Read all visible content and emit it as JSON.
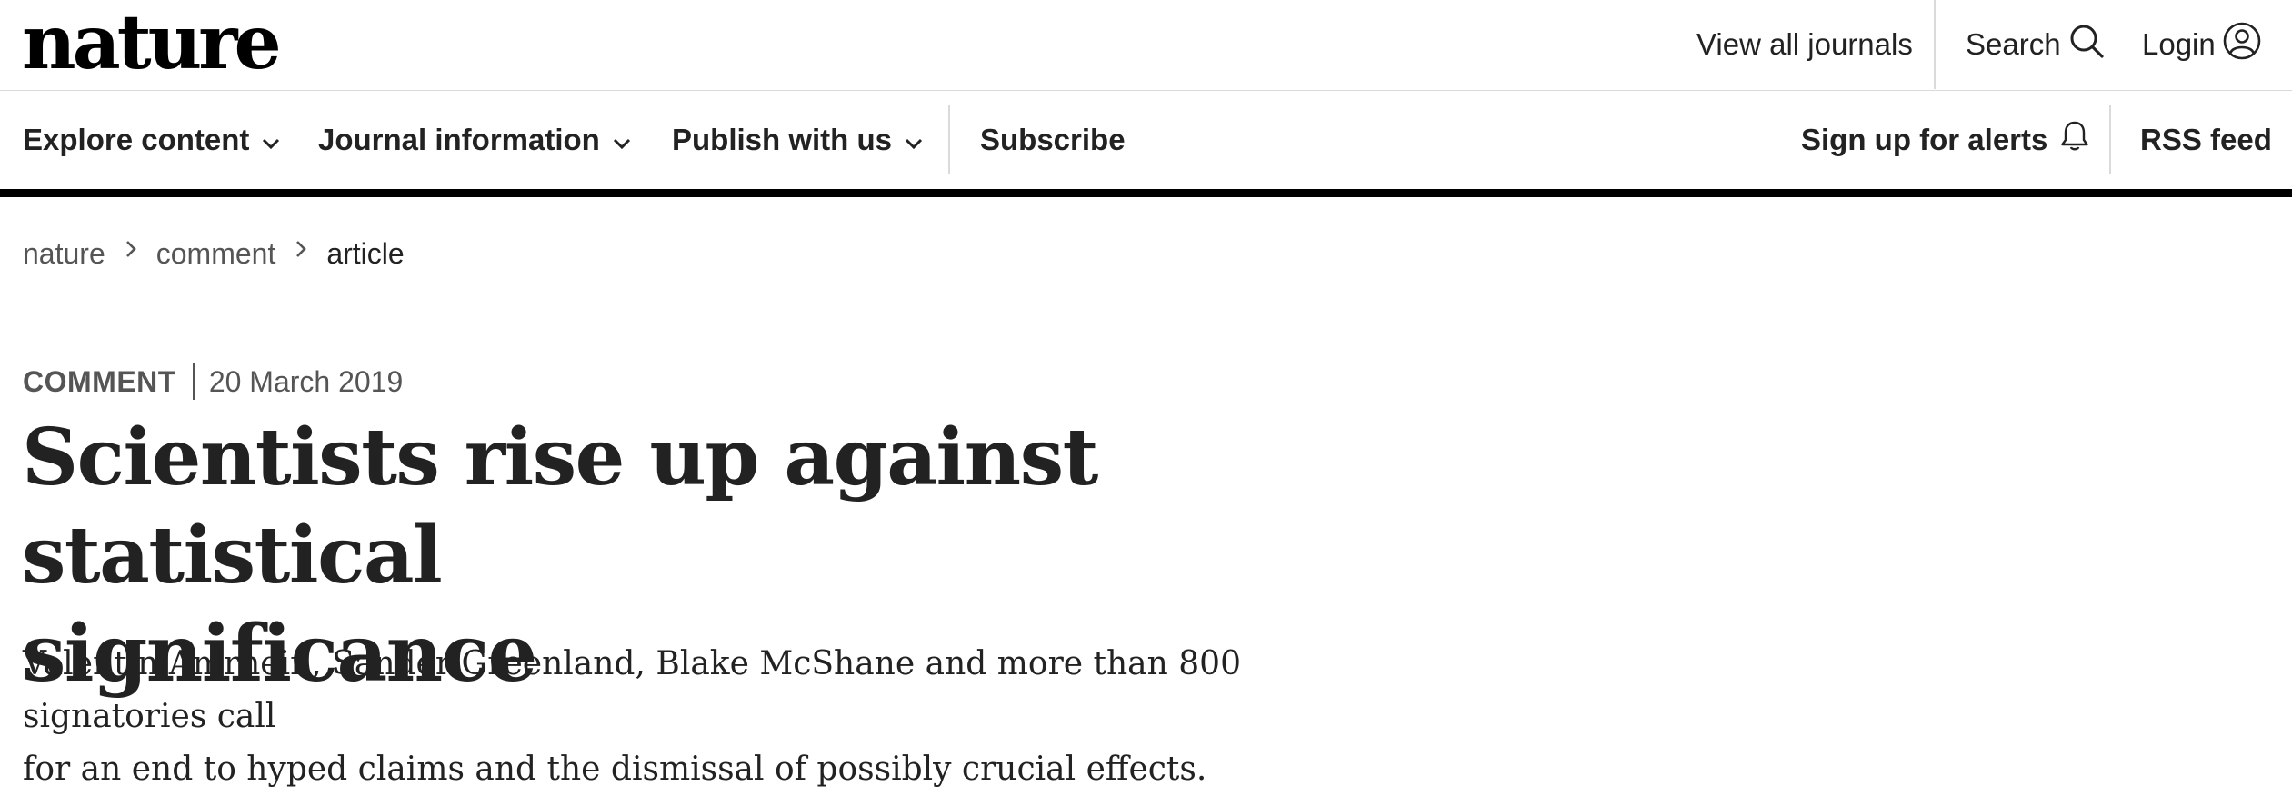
{
  "header": {
    "logo_text": "nature",
    "view_all_journals": "View all journals",
    "search_label": "Search",
    "login_label": "Login"
  },
  "nav": {
    "explore_content": "Explore content",
    "journal_information": "Journal information",
    "publish_with_us": "Publish with us",
    "subscribe": "Subscribe",
    "sign_up_alerts": "Sign up for alerts",
    "rss_feed": "RSS feed"
  },
  "breadcrumb": {
    "items": [
      "nature",
      "comment",
      "article"
    ]
  },
  "article": {
    "type": "COMMENT",
    "date": "20 March 2019",
    "title_line1": "Scientists rise up against statistical",
    "title_line2": "significance",
    "standfirst_line1": "Valentin Amrhein, Sander Greenland, Blake McShane and more than 800 signatories call",
    "standfirst_line2": "for an end to hyped claims and the dismissal of possibly crucial effects."
  },
  "icons": {
    "search": "search-icon",
    "login": "user-circle-icon",
    "dropdown": "chevron-down-icon",
    "alerts": "bell-icon",
    "breadcrumb_separator": "chevron-right-icon"
  },
  "colors": {
    "text": "#222222",
    "muted": "#555555",
    "rule": "#000000",
    "divider": "#dadada"
  }
}
